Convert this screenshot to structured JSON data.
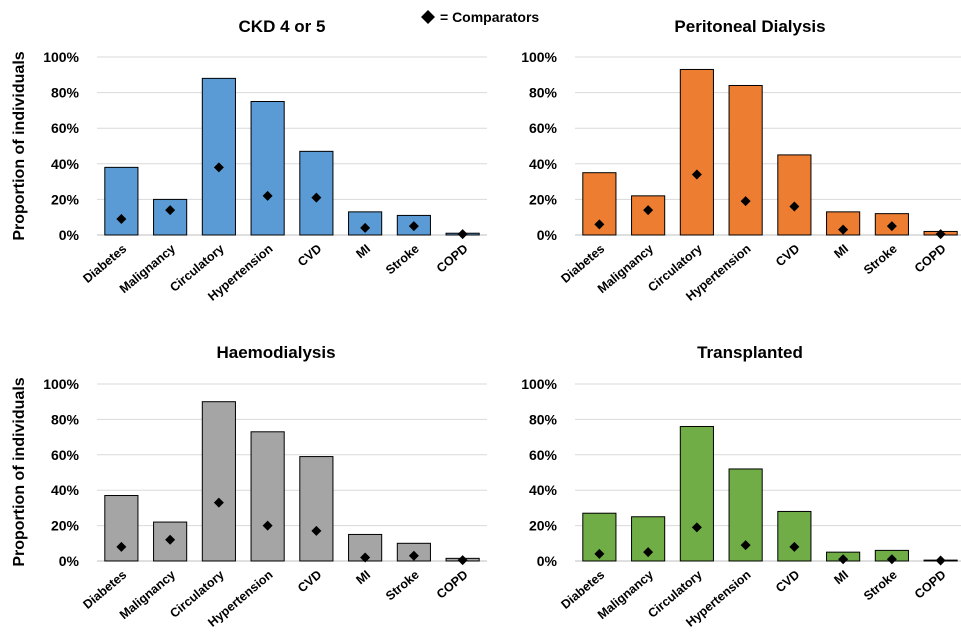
{
  "legend": {
    "comparators_label": "= Comparators"
  },
  "chart_data": [
    {
      "type": "bar",
      "title": "CKD 4 or 5",
      "ylabel": "Proportion of individuals",
      "ylim": [
        0,
        100
      ],
      "yticks": [
        "0%",
        "20%",
        "40%",
        "60%",
        "80%",
        "100%"
      ],
      "categories": [
        "Diabetes",
        "Malignancy",
        "Circulatory",
        "Hypertension",
        "CVD",
        "MI",
        "Stroke",
        "COPD"
      ],
      "color": "#5b9bd5",
      "series": [
        {
          "values": [
            38,
            20,
            88,
            75,
            47,
            13,
            11,
            1
          ]
        },
        {
          "name": "Comparators",
          "marker": "diamond",
          "values": [
            9,
            14,
            38,
            22,
            21,
            4,
            5,
            0.5
          ]
        }
      ]
    },
    {
      "type": "bar",
      "title": "Peritoneal Dialysis",
      "ylabel": "",
      "ylim": [
        0,
        100
      ],
      "yticks": [
        "0%",
        "20%",
        "40%",
        "60%",
        "80%",
        "100%"
      ],
      "categories": [
        "Diabetes",
        "Malignancy",
        "Circulatory",
        "Hypertension",
        "CVD",
        "MI",
        "Stroke",
        "COPD"
      ],
      "color": "#ed7d31",
      "series": [
        {
          "values": [
            35,
            22,
            93,
            84,
            45,
            13,
            12,
            2
          ]
        },
        {
          "name": "Comparators",
          "marker": "diamond",
          "values": [
            6,
            14,
            34,
            19,
            16,
            3,
            5,
            0.5
          ]
        }
      ]
    },
    {
      "type": "bar",
      "title": "Haemodialysis",
      "ylabel": "Proportion of individuals",
      "ylim": [
        0,
        100
      ],
      "yticks": [
        "0%",
        "20%",
        "40%",
        "60%",
        "80%",
        "100%"
      ],
      "categories": [
        "Diabetes",
        "Malignancy",
        "Circulatory",
        "Hypertension",
        "CVD",
        "MI",
        "Stroke",
        "COPD"
      ],
      "color": "#a5a5a5",
      "series": [
        {
          "values": [
            37,
            22,
            90,
            73,
            59,
            15,
            10,
            1.5
          ]
        },
        {
          "name": "Comparators",
          "marker": "diamond",
          "values": [
            8,
            12,
            33,
            20,
            17,
            2,
            3,
            0.5
          ]
        }
      ]
    },
    {
      "type": "bar",
      "title": "Transplanted",
      "ylabel": "",
      "ylim": [
        0,
        100
      ],
      "yticks": [
        "0%",
        "20%",
        "40%",
        "60%",
        "80%",
        "100%"
      ],
      "categories": [
        "Diabetes",
        "Malignancy",
        "Circulatory",
        "Hypertension",
        "CVD",
        "MI",
        "Stroke",
        "COPD"
      ],
      "color": "#70ad47",
      "series": [
        {
          "values": [
            27,
            25,
            76,
            52,
            28,
            5,
            6,
            0.5
          ]
        },
        {
          "name": "Comparators",
          "marker": "diamond",
          "values": [
            4,
            5,
            19,
            9,
            8,
            1,
            1,
            0.3
          ]
        }
      ]
    }
  ]
}
